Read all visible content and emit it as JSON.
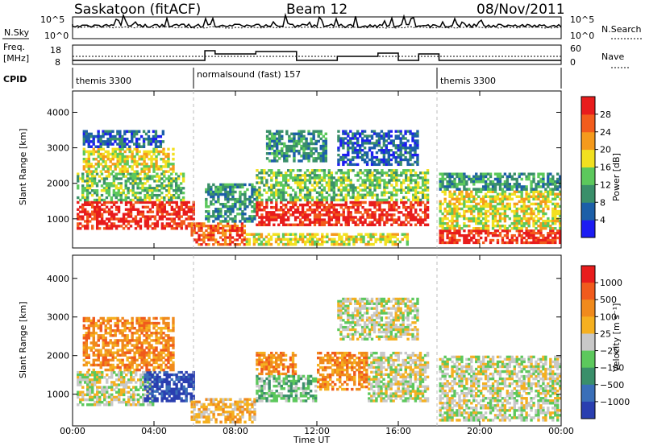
{
  "header": {
    "site": "Saskatoon (fitACF)",
    "beam": "Beam 12",
    "date": "08/Nov/2011"
  },
  "strips": {
    "nsky_label": "N.Sky",
    "nsky_ticks": [
      "10^5",
      "10^0"
    ],
    "nsearch_label": "N.Search",
    "nsearch_ticks": [
      "10^5",
      "10^0"
    ],
    "freq_label_1": "Freq.",
    "freq_label_2": "[MHz]",
    "freq_ticks": [
      "18",
      "8"
    ],
    "nave_label": "Nave",
    "nave_ticks": [
      "60",
      "0"
    ],
    "cpid_label": "CPID",
    "cpid_segments": [
      {
        "name": "themis 3300",
        "start_h": 0,
        "end_h": 6.0
      },
      {
        "name": "normalsound (fast) 157",
        "start_h": 6.0,
        "end_h": 18.0
      },
      {
        "name": "themis 3300",
        "start_h": 18.0,
        "end_h": 24.0
      }
    ]
  },
  "chart_data": [
    {
      "type": "heatmap",
      "name": "power",
      "ylabel": "Slant Range [km]",
      "xlabel": "Time UT",
      "x_ticks": [
        "00:00",
        "04:00",
        "08:00",
        "12:00",
        "16:00",
        "20:00",
        "00:00"
      ],
      "y_ticks": [
        "1000",
        "2000",
        "3000",
        "4000"
      ],
      "ylim": [
        180,
        4600
      ],
      "xlim_hours": [
        0,
        24
      ],
      "colorbar_label": "Power [dB]",
      "colorbar_ticks": [
        "4",
        "8",
        "12",
        "16",
        "20",
        "24",
        "28"
      ],
      "colors": [
        "#1c1cf2",
        "#1c5fa8",
        "#3a8f6a",
        "#5cc85c",
        "#f2e020",
        "#f59a1c",
        "#f25c1c",
        "#e81c1c"
      ],
      "blobs": [
        {
          "t0": 0.2,
          "t1": 6.0,
          "r0": 700,
          "r1": 1500,
          "level": 7
        },
        {
          "t0": 0.2,
          "t1": 5.5,
          "r0": 1500,
          "r1": 2300,
          "level": 3
        },
        {
          "t0": 0.5,
          "t1": 5.0,
          "r0": 2300,
          "r1": 3000,
          "level": 4
        },
        {
          "t0": 0.5,
          "t1": 4.5,
          "r0": 3000,
          "r1": 3500,
          "level": 1
        },
        {
          "t0": 5.8,
          "t1": 8.5,
          "r0": 250,
          "r1": 900,
          "level": 6
        },
        {
          "t0": 6.5,
          "t1": 9.0,
          "r0": 900,
          "r1": 2000,
          "level": 2
        },
        {
          "t0": 9.0,
          "t1": 17.5,
          "r0": 800,
          "r1": 1500,
          "level": 7
        },
        {
          "t0": 9.0,
          "t1": 17.5,
          "r0": 1500,
          "r1": 2400,
          "level": 3
        },
        {
          "t0": 9.5,
          "t1": 12.5,
          "r0": 2600,
          "r1": 3500,
          "level": 2
        },
        {
          "t0": 13.0,
          "t1": 17.0,
          "r0": 2500,
          "r1": 3500,
          "level": 1
        },
        {
          "t0": 8.5,
          "t1": 16.5,
          "r0": 250,
          "r1": 600,
          "level": 4
        },
        {
          "t0": 18.0,
          "t1": 24.0,
          "r0": 300,
          "r1": 700,
          "level": 7
        },
        {
          "t0": 18.0,
          "t1": 24.0,
          "r0": 700,
          "r1": 1800,
          "level": 4
        },
        {
          "t0": 18.0,
          "t1": 24.0,
          "r0": 1800,
          "r1": 2300,
          "level": 2
        }
      ]
    },
    {
      "type": "heatmap",
      "name": "velocity",
      "ylabel": "Slant Range [km]",
      "xlabel": "Time UT",
      "x_ticks": [
        "00:00",
        "04:00",
        "08:00",
        "12:00",
        "16:00",
        "20:00",
        "00:00"
      ],
      "y_ticks": [
        "1000",
        "2000",
        "3000",
        "4000"
      ],
      "ylim": [
        180,
        4600
      ],
      "xlim_hours": [
        0,
        24
      ],
      "colorbar_label": "Velocity [m s⁻¹]",
      "colorbar_ticks": [
        "1000",
        "500",
        "100",
        "25",
        "−25",
        "−100",
        "−500",
        "−1000"
      ],
      "colors": [
        "#2a3fb0",
        "#3a6fb8",
        "#3a8f6a",
        "#5cc85c",
        "#c8c8c8",
        "#f5b020",
        "#f08a1c",
        "#f05a1c",
        "#e81c1c"
      ],
      "blobs": [
        {
          "t0": 0.2,
          "t1": 4.0,
          "r0": 700,
          "r1": 1600,
          "level": 4
        },
        {
          "t0": 3.5,
          "t1": 6.0,
          "r0": 800,
          "r1": 1600,
          "level": 0
        },
        {
          "t0": 0.5,
          "t1": 5.0,
          "r0": 1600,
          "r1": 3000,
          "level": 6
        },
        {
          "t0": 5.8,
          "t1": 9.0,
          "r0": 250,
          "r1": 900,
          "level": 5
        },
        {
          "t0": 9.0,
          "t1": 12.0,
          "r0": 800,
          "r1": 1500,
          "level": 3
        },
        {
          "t0": 9.0,
          "t1": 11.0,
          "r0": 1500,
          "r1": 2100,
          "level": 6
        },
        {
          "t0": 12.0,
          "t1": 14.5,
          "r0": 1100,
          "r1": 2100,
          "level": 6
        },
        {
          "t0": 14.5,
          "t1": 17.5,
          "r0": 800,
          "r1": 2100,
          "level": 4
        },
        {
          "t0": 13.0,
          "t1": 17.0,
          "r0": 2400,
          "r1": 3500,
          "level": 4
        },
        {
          "t0": 18.0,
          "t1": 24.0,
          "r0": 300,
          "r1": 2000,
          "level": 4
        }
      ]
    }
  ]
}
